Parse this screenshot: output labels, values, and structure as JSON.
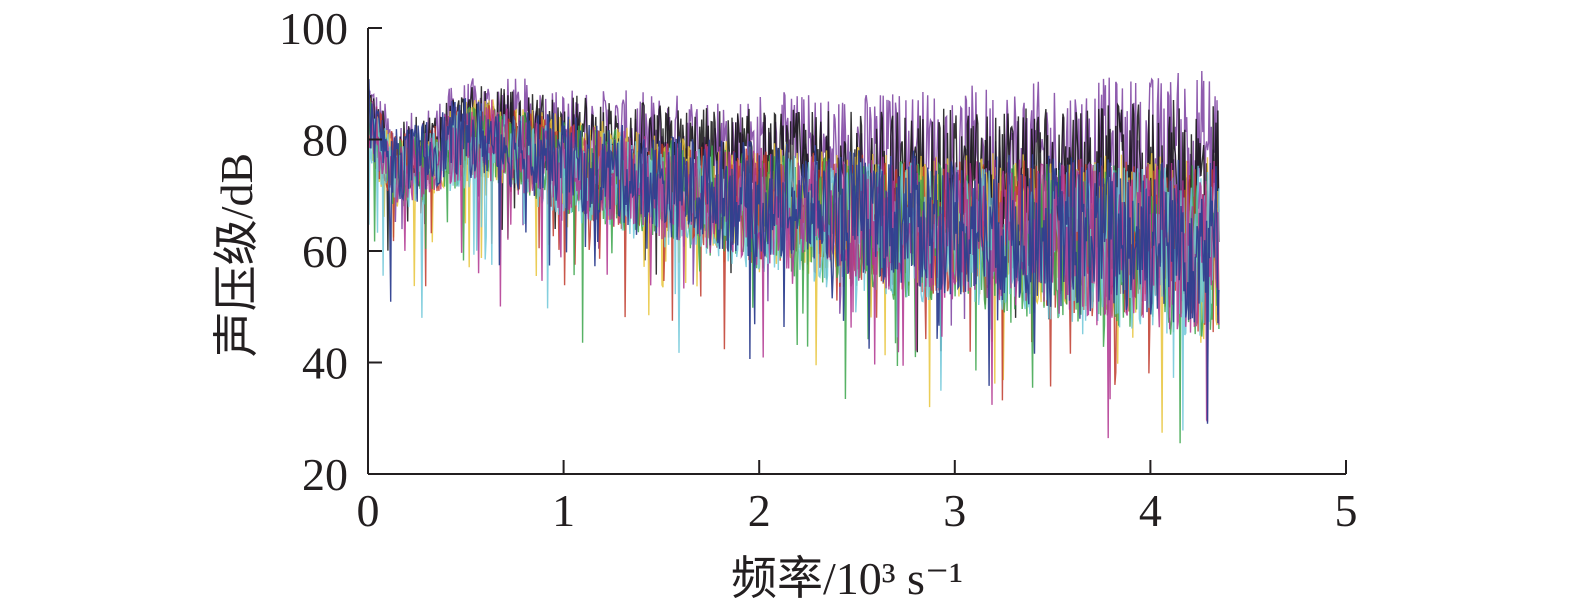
{
  "chart_data": {
    "type": "line",
    "title": "",
    "xlabel": "频率/10³ s⁻¹",
    "ylabel": "声压级/dB",
    "xlim": [
      0,
      5
    ],
    "ylim": [
      20,
      100
    ],
    "xticks": [
      0,
      1,
      2,
      3,
      4,
      5
    ],
    "yticks": [
      20,
      40,
      60,
      80,
      100
    ],
    "x_tick_labels": [
      "0",
      "1",
      "2",
      "3",
      "4",
      "5"
    ],
    "y_tick_labels": [
      "20",
      "40",
      "60",
      "80",
      "100"
    ],
    "grid": false,
    "legend": "none",
    "x_data_range": [
      0,
      4.35
    ],
    "series": [
      {
        "color": "#7b3fa0",
        "x": [
          0,
          0.05,
          0.15,
          0.3,
          0.45,
          0.6,
          0.8,
          1.0,
          1.5,
          2.0,
          2.5,
          3.0,
          3.5,
          4.0,
          4.35
        ],
        "values": [
          88,
          83,
          78,
          80,
          84,
          85,
          84,
          82,
          80,
          79,
          78,
          78,
          78,
          78,
          79
        ]
      },
      {
        "color": "#111111",
        "x": [
          0,
          0.05,
          0.15,
          0.3,
          0.45,
          0.6,
          0.8,
          1.0,
          1.5,
          2.0,
          2.5,
          3.0,
          3.5,
          4.0,
          4.35
        ],
        "values": [
          86,
          81,
          77,
          79,
          83,
          83,
          82,
          81,
          78,
          76,
          75,
          74,
          73,
          73,
          74
        ]
      },
      {
        "color": "#e8c43a",
        "x": [
          0,
          0.05,
          0.15,
          0.3,
          0.45,
          0.6,
          0.8,
          1.0,
          1.5,
          2.0,
          2.5,
          3.0,
          3.5,
          4.0,
          4.35
        ],
        "values": [
          85,
          79,
          74,
          76,
          80,
          81,
          79,
          77,
          73,
          70,
          68,
          66,
          65,
          64,
          63
        ]
      },
      {
        "color": "#c0392b",
        "x": [
          0,
          0.05,
          0.15,
          0.3,
          0.45,
          0.6,
          0.8,
          1.0,
          1.5,
          2.0,
          2.5,
          3.0,
          3.5,
          4.0,
          4.35
        ],
        "values": [
          85,
          80,
          75,
          77,
          80,
          80,
          78,
          76,
          72,
          69,
          67,
          65,
          64,
          63,
          62
        ]
      },
      {
        "color": "#3aa54a",
        "x": [
          0,
          0.05,
          0.15,
          0.3,
          0.45,
          0.6,
          0.8,
          1.0,
          1.5,
          2.0,
          2.5,
          3.0,
          3.5,
          4.0,
          4.35
        ],
        "values": [
          84,
          79,
          74,
          76,
          79,
          80,
          78,
          76,
          72,
          68,
          66,
          64,
          63,
          62,
          61
        ]
      },
      {
        "color": "#6fc7d8",
        "x": [
          0,
          0.05,
          0.15,
          0.3,
          0.45,
          0.6,
          0.8,
          1.0,
          1.5,
          2.0,
          2.5,
          3.0,
          3.5,
          4.0,
          4.35
        ],
        "values": [
          84,
          79,
          74,
          75,
          79,
          79,
          77,
          75,
          71,
          68,
          66,
          64,
          63,
          62,
          62
        ]
      },
      {
        "color": "#b0348f",
        "x": [
          0,
          0.05,
          0.15,
          0.3,
          0.45,
          0.6,
          0.8,
          1.0,
          1.5,
          2.0,
          2.5,
          3.0,
          3.5,
          4.0,
          4.35
        ],
        "values": [
          85,
          80,
          75,
          77,
          80,
          81,
          78,
          76,
          72,
          69,
          67,
          65,
          64,
          63,
          62
        ]
      },
      {
        "color": "#2e3f8f",
        "x": [
          0,
          0.05,
          0.15,
          0.3,
          0.45,
          0.6,
          0.8,
          1.0,
          1.5,
          2.0,
          2.5,
          3.0,
          3.5,
          4.0,
          4.35
        ],
        "values": [
          86,
          81,
          76,
          78,
          81,
          81,
          79,
          77,
          73,
          70,
          68,
          66,
          65,
          64,
          63
        ]
      }
    ]
  }
}
